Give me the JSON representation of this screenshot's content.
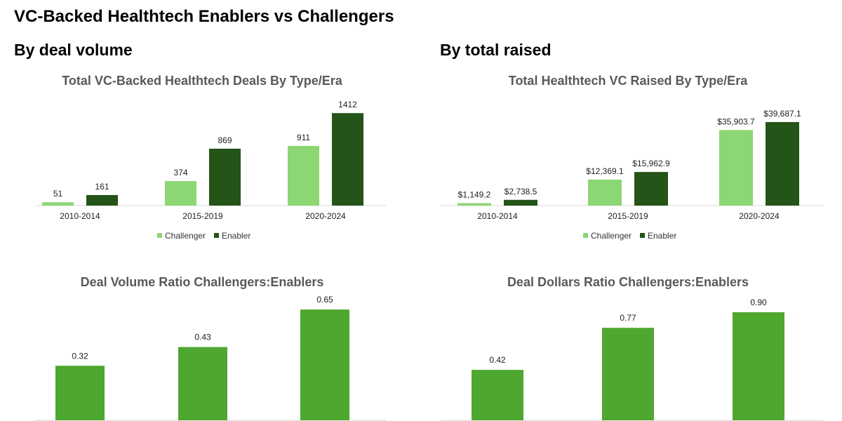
{
  "header": {
    "title": "VC-Backed Healthtech Enablers vs Challengers",
    "left_section": "By deal volume",
    "right_section": "By total raised"
  },
  "colors": {
    "challenger": "#8cd673",
    "enabler": "#245417",
    "ratio": "#4ea72e",
    "axis": "#d9d9d9",
    "title": "#595959"
  },
  "chart_data": [
    {
      "type": "bar",
      "title": "Total VC-Backed Healthtech Deals By Type/Era",
      "categories": [
        "2010-2014",
        "2015-2019",
        "2020-2024"
      ],
      "series": [
        {
          "name": "Challenger",
          "values": [
            51,
            374,
            911
          ],
          "labels": [
            "51",
            "374",
            "911"
          ]
        },
        {
          "name": "Enabler",
          "values": [
            161,
            869,
            1412
          ],
          "labels": [
            "161",
            "869",
            "1412"
          ]
        }
      ],
      "ylim": [
        0,
        1500
      ],
      "legend": "bottom"
    },
    {
      "type": "bar",
      "title": "Total Healthtech VC Raised By Type/Era",
      "categories": [
        "2010-2014",
        "2015-2019",
        "2020-2024"
      ],
      "series": [
        {
          "name": "Challenger",
          "values": [
            1149.2,
            12369.1,
            35903.7
          ],
          "labels": [
            "$1,149.2",
            "$12,369.1",
            "$35,903.7"
          ]
        },
        {
          "name": "Enabler",
          "values": [
            2738.5,
            15962.9,
            39687.1
          ],
          "labels": [
            "$2,738.5",
            "$15,962.9",
            "$39,687.1"
          ]
        }
      ],
      "ylim": [
        0,
        42000
      ],
      "legend": "bottom"
    },
    {
      "type": "bar",
      "title": "Deal Volume Ratio Challengers:Enablers",
      "series": [
        {
          "name": "Ratio",
          "values": [
            0.32,
            0.43,
            0.65
          ],
          "labels": [
            "0.32",
            "0.43",
            "0.65"
          ]
        }
      ],
      "ylim": [
        0,
        0.7
      ]
    },
    {
      "type": "bar",
      "title": "Deal Dollars Ratio Challengers:Enablers",
      "series": [
        {
          "name": "Ratio",
          "values": [
            0.42,
            0.77,
            0.9
          ],
          "labels": [
            "0.42",
            "0.77",
            "0.90"
          ]
        }
      ],
      "ylim": [
        0,
        0.97
      ]
    }
  ]
}
